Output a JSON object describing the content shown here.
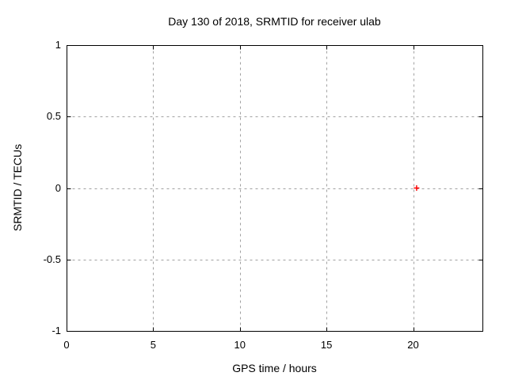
{
  "chart_data": {
    "type": "scatter",
    "title": "Day 130 of 2018, SRMTID for receiver ulab",
    "xlabel": "GPS time / hours",
    "ylabel": "SRMTID / TECUs",
    "xlim": [
      0,
      24
    ],
    "ylim": [
      -1,
      1
    ],
    "xticks": [
      0,
      5,
      10,
      15,
      20
    ],
    "yticks": [
      -1,
      -0.5,
      0,
      0.5,
      1
    ],
    "grid": true,
    "legend": "none",
    "axis_color": "#000000",
    "grid_color": "#a0a0a0",
    "background_color": "#ffffff",
    "series": [
      {
        "name": "SRMTID",
        "marker": "plus",
        "color": "#ff0000",
        "points": [
          {
            "x": 20.2,
            "y": 0.0
          }
        ]
      }
    ]
  }
}
